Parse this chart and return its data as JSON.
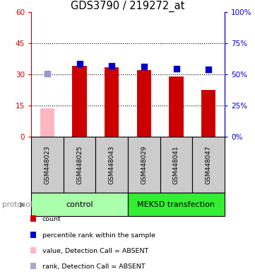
{
  "title": "GDS3790 / 219272_at",
  "samples": [
    "GSM448023",
    "GSM448025",
    "GSM448043",
    "GSM448029",
    "GSM448041",
    "GSM448047"
  ],
  "bar_values": [
    13.5,
    34.0,
    33.5,
    32.0,
    29.0,
    22.5
  ],
  "bar_colors": [
    "#ffb6c1",
    "#cc0000",
    "#cc0000",
    "#cc0000",
    "#cc0000",
    "#cc0000"
  ],
  "dot_values": [
    30.5,
    35.2,
    34.0,
    33.6,
    32.8,
    32.5
  ],
  "dot_colors": [
    "#9999cc",
    "#0000cc",
    "#0000cc",
    "#0000cc",
    "#0000cc",
    "#0000cc"
  ],
  "ylim_left": [
    0,
    60
  ],
  "ylim_right": [
    0,
    100
  ],
  "yticks_left": [
    0,
    15,
    30,
    45,
    60
  ],
  "yticks_right": [
    0,
    25,
    50,
    75,
    100
  ],
  "ytick_labels_left": [
    "0",
    "15",
    "30",
    "45",
    "60"
  ],
  "ytick_labels_right": [
    "0%",
    "25%",
    "50%",
    "75%",
    "100%"
  ],
  "groups": [
    {
      "label": "control",
      "start": 0,
      "end": 3,
      "color": "#aaffaa"
    },
    {
      "label": "MEK5D transfection",
      "start": 3,
      "end": 6,
      "color": "#33ee33"
    }
  ],
  "protocol_label": "protocol",
  "legend_items": [
    {
      "label": "count",
      "color": "#cc0000"
    },
    {
      "label": "percentile rank within the sample",
      "color": "#0000cc"
    },
    {
      "label": "value, Detection Call = ABSENT",
      "color": "#ffb6c1"
    },
    {
      "label": "rank, Detection Call = ABSENT",
      "color": "#aaaacc"
    }
  ],
  "left_tick_color": "#cc0000",
  "right_tick_color": "#0000cc",
  "bar_width": 0.45,
  "dot_size": 35,
  "sample_box_color": "#cccccc",
  "grid_yticks": [
    15,
    30,
    45
  ]
}
